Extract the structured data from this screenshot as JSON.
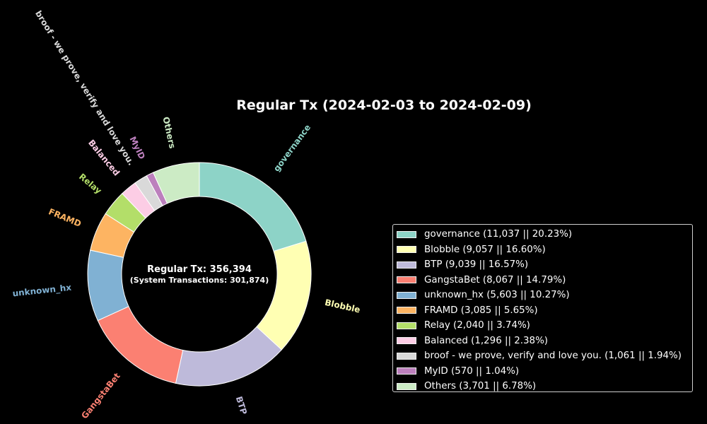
{
  "chart_data": {
    "type": "pie",
    "style": "donut",
    "title": "Regular Tx (2024-02-03 to 2024-02-09)",
    "center_text": [
      "Regular Tx: 356,394",
      "(System Transactions: 301,874)"
    ],
    "legend_placement": "right",
    "slices": [
      {
        "label": "governance",
        "value": 11037,
        "percent": 20.23,
        "color": "#8dd3c7",
        "legend": "governance (11,037 || 20.23%)"
      },
      {
        "label": "Blobble",
        "value": 9057,
        "percent": 16.6,
        "color": "#ffffb3",
        "legend": "Blobble (9,057 || 16.60%)"
      },
      {
        "label": "BTP",
        "value": 9039,
        "percent": 16.57,
        "color": "#bebada",
        "legend": "BTP (9,039 || 16.57%)"
      },
      {
        "label": "GangstaBet",
        "value": 8067,
        "percent": 14.79,
        "color": "#fb8072",
        "legend": "GangstaBet (8,067 || 14.79%)"
      },
      {
        "label": "unknown_hx",
        "value": 5603,
        "percent": 10.27,
        "color": "#80b1d3",
        "legend": "unknown_hx (5,603 || 10.27%)"
      },
      {
        "label": "FRAMD",
        "value": 3085,
        "percent": 5.65,
        "color": "#fdb462",
        "legend": "FRAMD (3,085 || 5.65%)"
      },
      {
        "label": "Relay",
        "value": 2040,
        "percent": 3.74,
        "color": "#b3de69",
        "legend": "Relay (2,040 || 3.74%)"
      },
      {
        "label": "Balanced",
        "value": 1296,
        "percent": 2.38,
        "color": "#fccde5",
        "legend": "Balanced (1,296 || 2.38%)"
      },
      {
        "label": "broof - we prove, verify and love you.",
        "value": 1061,
        "percent": 1.94,
        "color": "#d9d9d9",
        "legend": "broof - we prove, verify and love you. (1,061 || 1.94%)"
      },
      {
        "label": "MyID",
        "value": 570,
        "percent": 1.04,
        "color": "#bc80bd",
        "legend": "MyID (570 || 1.04%)"
      },
      {
        "label": "Others",
        "value": 3701,
        "percent": 6.78,
        "color": "#ccebc5",
        "legend": "Others (3,701 || 6.78%)"
      }
    ]
  }
}
